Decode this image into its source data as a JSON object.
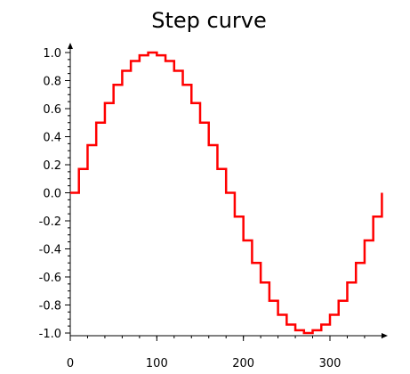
{
  "chart_data": {
    "type": "line",
    "style": "step",
    "title": "Step curve",
    "xlabel": "",
    "ylabel": "",
    "xlim": [
      0,
      360
    ],
    "ylim": [
      -1.0,
      1.0
    ],
    "x_ticks": [
      "0",
      "100",
      "200",
      "300"
    ],
    "x_tick_values": [
      0,
      100,
      200,
      300
    ],
    "y_ticks": [
      "1.0",
      "0.8",
      "0.6",
      "0.4",
      "0.2",
      "0.0",
      "-0.2",
      "-0.4",
      "-0.6",
      "-0.8",
      "-1.0"
    ],
    "y_tick_values": [
      1.0,
      0.8,
      0.6,
      0.4,
      0.2,
      0.0,
      -0.2,
      -0.4,
      -0.6,
      -0.8,
      -1.0
    ],
    "grid": false,
    "series": [
      {
        "color": "#ff0000",
        "x": [
          0,
          10,
          20,
          30,
          40,
          50,
          60,
          70,
          80,
          90,
          100,
          110,
          120,
          130,
          140,
          150,
          160,
          170,
          180,
          190,
          200,
          210,
          220,
          230,
          240,
          250,
          260,
          270,
          280,
          290,
          300,
          310,
          320,
          330,
          340,
          350,
          360
        ],
        "values": [
          0.0,
          0.17,
          0.34,
          0.5,
          0.64,
          0.77,
          0.87,
          0.94,
          0.98,
          1.0,
          0.98,
          0.94,
          0.87,
          0.77,
          0.64,
          0.5,
          0.34,
          0.17,
          0.0,
          -0.17,
          -0.34,
          -0.5,
          -0.64,
          -0.77,
          -0.87,
          -0.94,
          -0.98,
          -1.0,
          -0.98,
          -0.94,
          -0.87,
          -0.77,
          -0.64,
          -0.5,
          -0.34,
          -0.17,
          0.0
        ]
      }
    ]
  }
}
